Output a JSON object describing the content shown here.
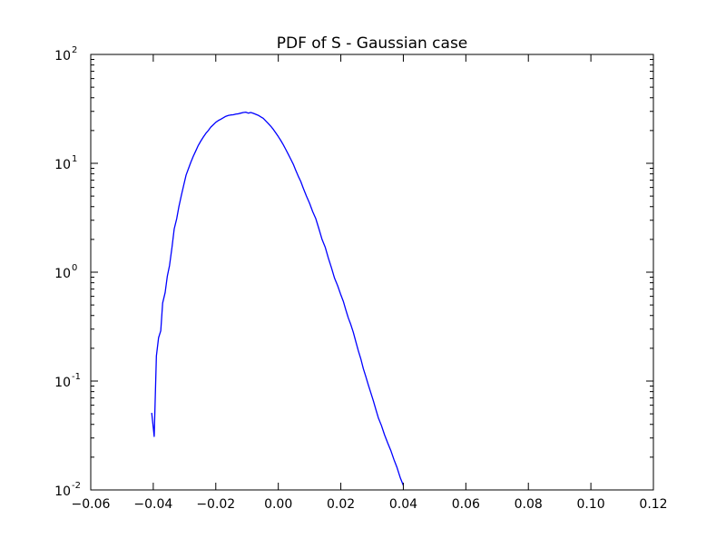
{
  "chart_data": {
    "type": "line",
    "title": "PDF of S - Gaussian case",
    "xlabel": "",
    "ylabel": "",
    "xlim": [
      -0.06,
      0.12
    ],
    "ylim": [
      0.01,
      100
    ],
    "yscale": "log",
    "grid": false,
    "legend": "none",
    "x_ticks": [
      -0.06,
      -0.04,
      -0.02,
      0.0,
      0.02,
      0.04,
      0.06,
      0.08,
      0.1,
      0.12
    ],
    "x_tick_labels": [
      "−0.06",
      "−0.04",
      "−0.02",
      "0.00",
      "0.02",
      "0.04",
      "0.06",
      "0.08",
      "0.10",
      "0.12"
    ],
    "y_ticks": [
      {
        "value": 0.01,
        "base": "10",
        "exp": "-2"
      },
      {
        "value": 0.1,
        "base": "10",
        "exp": "-1"
      },
      {
        "value": 1,
        "base": "10",
        "exp": "0"
      },
      {
        "value": 10,
        "base": "10",
        "exp": "1"
      },
      {
        "value": 100,
        "base": "10",
        "exp": "2"
      }
    ],
    "series": [
      {
        "color": "#0000ff",
        "points": [
          [
            -0.0405,
            0.051
          ],
          [
            -0.0397,
            0.031
          ],
          [
            -0.039,
            0.17
          ],
          [
            -0.0383,
            0.25
          ],
          [
            -0.0376,
            0.29
          ],
          [
            -0.037,
            0.52
          ],
          [
            -0.0362,
            0.65
          ],
          [
            -0.0355,
            0.92
          ],
          [
            -0.0348,
            1.15
          ],
          [
            -0.034,
            1.7
          ],
          [
            -0.0333,
            2.5
          ],
          [
            -0.0325,
            3.1
          ],
          [
            -0.0318,
            4.0
          ],
          [
            -0.031,
            5.1
          ],
          [
            -0.0302,
            6.4
          ],
          [
            -0.0295,
            7.8
          ],
          [
            -0.0287,
            9.0
          ],
          [
            -0.028,
            10.2
          ],
          [
            -0.0272,
            11.6
          ],
          [
            -0.0264,
            13.0
          ],
          [
            -0.0256,
            14.6
          ],
          [
            -0.0248,
            16.0
          ],
          [
            -0.024,
            17.4
          ],
          [
            -0.0232,
            18.8
          ],
          [
            -0.0224,
            20.0
          ],
          [
            -0.0216,
            21.5
          ],
          [
            -0.0208,
            22.6
          ],
          [
            -0.02,
            23.8
          ],
          [
            -0.0192,
            24.7
          ],
          [
            -0.0184,
            25.4
          ],
          [
            -0.0176,
            26.2
          ],
          [
            -0.0168,
            27.0
          ],
          [
            -0.016,
            27.5
          ],
          [
            -0.0152,
            27.8
          ],
          [
            -0.0144,
            27.9
          ],
          [
            -0.0136,
            28.3
          ],
          [
            -0.0128,
            28.5
          ],
          [
            -0.012,
            28.9
          ],
          [
            -0.0112,
            29.3
          ],
          [
            -0.0104,
            29.5
          ],
          [
            -0.0096,
            28.9
          ],
          [
            -0.0088,
            29.3
          ],
          [
            -0.008,
            28.8
          ],
          [
            -0.0072,
            28.2
          ],
          [
            -0.0064,
            27.6
          ],
          [
            -0.0056,
            26.7
          ],
          [
            -0.0048,
            25.9
          ],
          [
            -0.004,
            24.5
          ],
          [
            -0.0032,
            23.2
          ],
          [
            -0.0024,
            21.9
          ],
          [
            -0.0016,
            20.5
          ],
          [
            -0.0008,
            19.0
          ],
          [
            0.0,
            17.6
          ],
          [
            0.0008,
            16.2
          ],
          [
            0.0016,
            14.8
          ],
          [
            0.0024,
            13.4
          ],
          [
            0.0032,
            12.1
          ],
          [
            0.004,
            10.9
          ],
          [
            0.0048,
            9.8
          ],
          [
            0.0056,
            8.6
          ],
          [
            0.0064,
            7.6
          ],
          [
            0.0072,
            6.8
          ],
          [
            0.008,
            5.9
          ],
          [
            0.009,
            5.0
          ],
          [
            0.01,
            4.3
          ],
          [
            0.011,
            3.6
          ],
          [
            0.012,
            3.1
          ],
          [
            0.013,
            2.5
          ],
          [
            0.014,
            2.0
          ],
          [
            0.015,
            1.7
          ],
          [
            0.016,
            1.35
          ],
          [
            0.017,
            1.1
          ],
          [
            0.018,
            0.88
          ],
          [
            0.019,
            0.75
          ],
          [
            0.02,
            0.62
          ],
          [
            0.0208,
            0.54
          ],
          [
            0.0216,
            0.45
          ],
          [
            0.0224,
            0.38
          ],
          [
            0.0232,
            0.33
          ],
          [
            0.024,
            0.28
          ],
          [
            0.0248,
            0.23
          ],
          [
            0.0256,
            0.19
          ],
          [
            0.0264,
            0.16
          ],
          [
            0.0272,
            0.13
          ],
          [
            0.028,
            0.11
          ],
          [
            0.0288,
            0.092
          ],
          [
            0.0296,
            0.078
          ],
          [
            0.0304,
            0.066
          ],
          [
            0.0312,
            0.055
          ],
          [
            0.032,
            0.046
          ],
          [
            0.033,
            0.039
          ],
          [
            0.034,
            0.032
          ],
          [
            0.035,
            0.027
          ],
          [
            0.036,
            0.023
          ],
          [
            0.037,
            0.019
          ],
          [
            0.038,
            0.016
          ],
          [
            0.039,
            0.013
          ],
          [
            0.04,
            0.011
          ]
        ]
      }
    ]
  }
}
